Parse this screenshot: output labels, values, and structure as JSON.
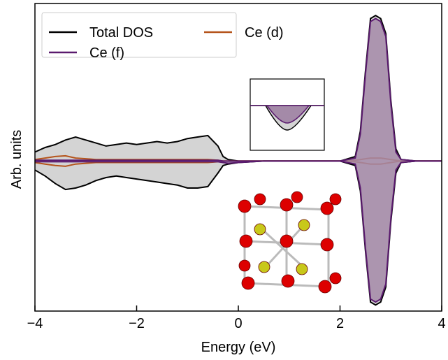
{
  "chart_data": {
    "type": "dos",
    "xlabel": "Energy (eV)",
    "ylabel": "Arb. units",
    "xlim": [
      -4,
      4
    ],
    "ylim": [
      -10,
      10.5
    ],
    "xticks": [
      {
        "value": -4,
        "label": "−4"
      },
      {
        "value": -2,
        "label": "−2"
      },
      0,
      2,
      4
    ],
    "x": [
      -4,
      -3.8,
      -3.6,
      -3.4,
      -3.2,
      -3.0,
      -2.8,
      -2.6,
      -2.4,
      -2.2,
      -2.0,
      -1.8,
      -1.6,
      -1.4,
      -1.2,
      -1.0,
      -0.8,
      -0.6,
      -0.4,
      -0.3,
      -0.2,
      0,
      0.5,
      1,
      1.5,
      2,
      2.3,
      2.4,
      2.5,
      2.6,
      2.7,
      2.8,
      2.9,
      3.0,
      3.1,
      3.2,
      3.5,
      4
    ],
    "series": [
      {
        "name": "Total DOS",
        "color": "#000000",
        "fill": "#d4d4d4",
        "values": [
          0.6,
          0.9,
          1.1,
          1.4,
          1.6,
          1.4,
          1.2,
          1.0,
          1.1,
          1.2,
          1.1,
          1.2,
          1.3,
          1.2,
          1.3,
          1.5,
          1.6,
          1.7,
          1.0,
          0.3,
          0.1,
          0,
          0,
          0,
          0,
          0,
          0.3,
          2,
          6,
          9.5,
          9.7,
          9.5,
          8.5,
          4,
          0.8,
          0.1,
          0,
          0
        ],
        "down_values": [
          -0.6,
          -1.0,
          -1.5,
          -1.9,
          -1.8,
          -1.6,
          -1.3,
          -1.1,
          -1.0,
          -1.1,
          -1.2,
          -1.3,
          -1.4,
          -1.5,
          -1.6,
          -1.8,
          -1.8,
          -1.7,
          -0.8,
          -0.3,
          -0.2,
          -0.1,
          0,
          0,
          0,
          0,
          -0.3,
          -2,
          -6,
          -9.4,
          -9.6,
          -9.4,
          -8.4,
          -4,
          -0.8,
          -0.1,
          0,
          0
        ]
      },
      {
        "name": "Ce (d)",
        "color": "#b5541b",
        "values": [
          0.1,
          0.2,
          0.3,
          0.35,
          0.2,
          0.15,
          0.1,
          0.1,
          0.1,
          0.1,
          0.1,
          0.1,
          0.1,
          0.1,
          0.1,
          0.1,
          0.1,
          0.1,
          0.05,
          0,
          0,
          0,
          0,
          0,
          0,
          0,
          0.05,
          0.1,
          0.15,
          0.2,
          0.2,
          0.2,
          0.15,
          0.1,
          0.05,
          0,
          0,
          0
        ],
        "down_values": [
          -0.1,
          -0.2,
          -0.3,
          -0.35,
          -0.2,
          -0.15,
          -0.1,
          -0.1,
          -0.1,
          -0.1,
          -0.1,
          -0.1,
          -0.1,
          -0.1,
          -0.1,
          -0.1,
          -0.1,
          -0.1,
          -0.05,
          0,
          0,
          0,
          0,
          0,
          0,
          0,
          -0.05,
          -0.1,
          -0.15,
          -0.2,
          -0.2,
          -0.2,
          -0.15,
          -0.1,
          -0.05,
          0,
          0,
          0
        ]
      },
      {
        "name": "Ce (f)",
        "color": "#5a1a6e",
        "fill": "#a48aa8",
        "values": [
          0.05,
          0.05,
          0.05,
          0.05,
          0.05,
          0.05,
          0.05,
          0.05,
          0.05,
          0.05,
          0.05,
          0.05,
          0.05,
          0.05,
          0.05,
          0.05,
          0.05,
          0.05,
          0.05,
          0,
          0,
          0,
          0,
          0,
          0,
          0,
          0.2,
          1.8,
          5.8,
          9.3,
          9.5,
          9.3,
          8.3,
          3.8,
          0.6,
          0.1,
          0,
          0
        ],
        "down_values": [
          -0.05,
          -0.05,
          -0.05,
          -0.05,
          -0.05,
          -0.05,
          -0.05,
          -0.05,
          -0.05,
          -0.05,
          -0.05,
          -0.05,
          -0.05,
          -0.05,
          -0.05,
          -0.05,
          -0.05,
          -0.05,
          -0.05,
          -0.1,
          -0.15,
          -0.1,
          0,
          0,
          0,
          0,
          -0.2,
          -1.8,
          -5.8,
          -9.2,
          -9.4,
          -9.2,
          -8.2,
          -3.8,
          -0.6,
          -0.1,
          0,
          0
        ]
      }
    ]
  }
}
